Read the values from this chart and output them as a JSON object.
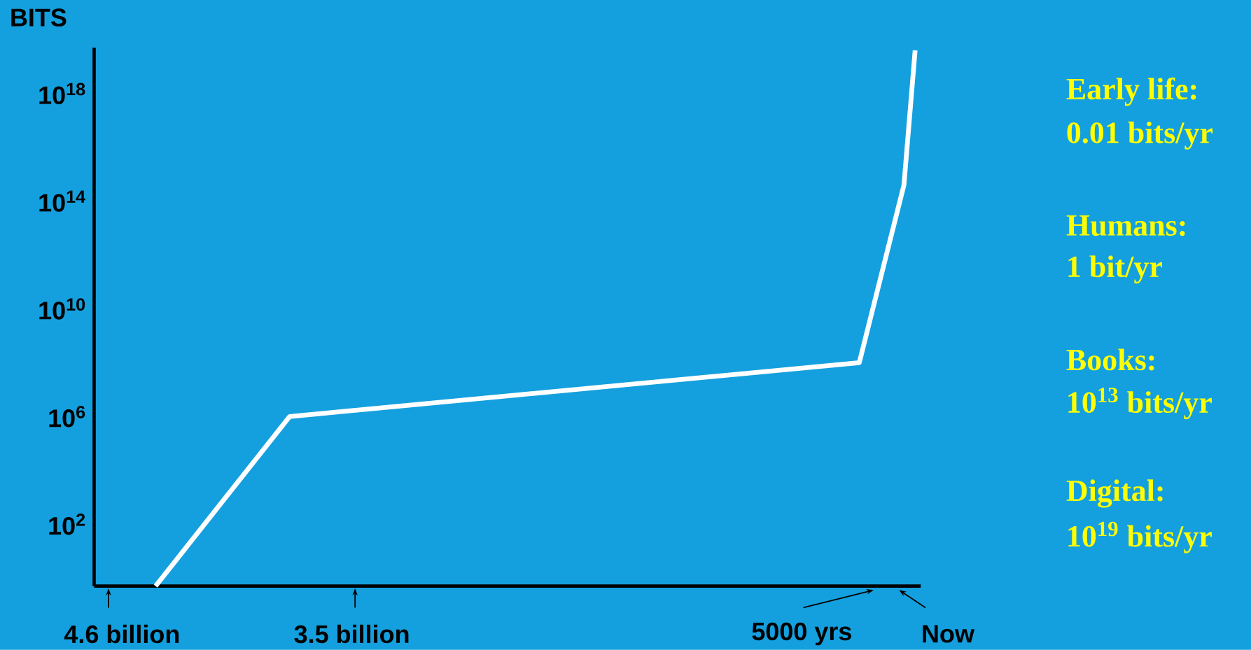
{
  "chart_data": {
    "type": "line",
    "ylabel": "BITS",
    "log": "y",
    "marker": "none",
    "line_style": "solid",
    "tick_labels": "y",
    "categories": [
      null,
      null,
      null,
      null,
      null,
      null,
      null,
      null,
      null,
      null,
      null,
      null,
      null,
      null,
      null,
      null,
      null,
      null,
      null,
      null,
      null,
      null,
      null,
      null,
      null,
      null,
      null,
      null,
      null,
      null,
      null,
      null,
      null,
      null,
      null,
      null,
      null,
      null,
      null,
      null,
      null,
      null,
      null,
      null,
      null,
      null,
      null,
      null,
      null,
      null,
      null,
      null,
      null,
      null,
      null,
      null,
      null,
      null,
      null,
      null,
      null,
      null,
      null,
      null,
      null,
      null,
      null,
      null,
      null,
      null,
      null,
      null,
      null,
      null
    ],
    "values": [
      null,
      null,
      null,
      null,
      null,
      0.5,
      null,
      null,
      null,
      null,
      null,
      null,
      null,
      null,
      null,
      null,
      null,
      1000000.0,
      null,
      null,
      null,
      null,
      null,
      null,
      null,
      null,
      null,
      null,
      null,
      null,
      null,
      null,
      null,
      null,
      null,
      null,
      null,
      null,
      null,
      null,
      null,
      null,
      null,
      null,
      null,
      null,
      null,
      null,
      null,
      null,
      null,
      null,
      null,
      null,
      null,
      null,
      null,
      null,
      null,
      null,
      null,
      null,
      null,
      null,
      null,
      null,
      null,
      null,
      100000000.0,
      null,
      null,
      null,
      400000000000000.0,
      4e+19
    ],
    "color": "#ffffff",
    "ylim": [
      0.5,
      5e+19
    ],
    "yticks": [
      {
        "value": 100.0,
        "label": "10$^{2}$"
      },
      {
        "value": 1000000.0,
        "label": "10$^{6}$"
      },
      {
        "value": 10000000000.0,
        "label": "10$^{10}$"
      },
      {
        "value": 100000000000000.0,
        "label": "10$^{14}$"
      },
      {
        "value": 1e+18,
        "label": "10$^{18}$"
      }
    ],
    "annotations": [
      "4.6 billion",
      "3.5 billion",
      "5000 yrs",
      "Now",
      "Early life:",
      "0.01 bits/yr",
      "Humans:",
      "1 bit/yr",
      "Books:",
      "10$^{13}$ bits/yr",
      "Digital:",
      "10$^{19}$ bits/yr"
    ]
  }
}
